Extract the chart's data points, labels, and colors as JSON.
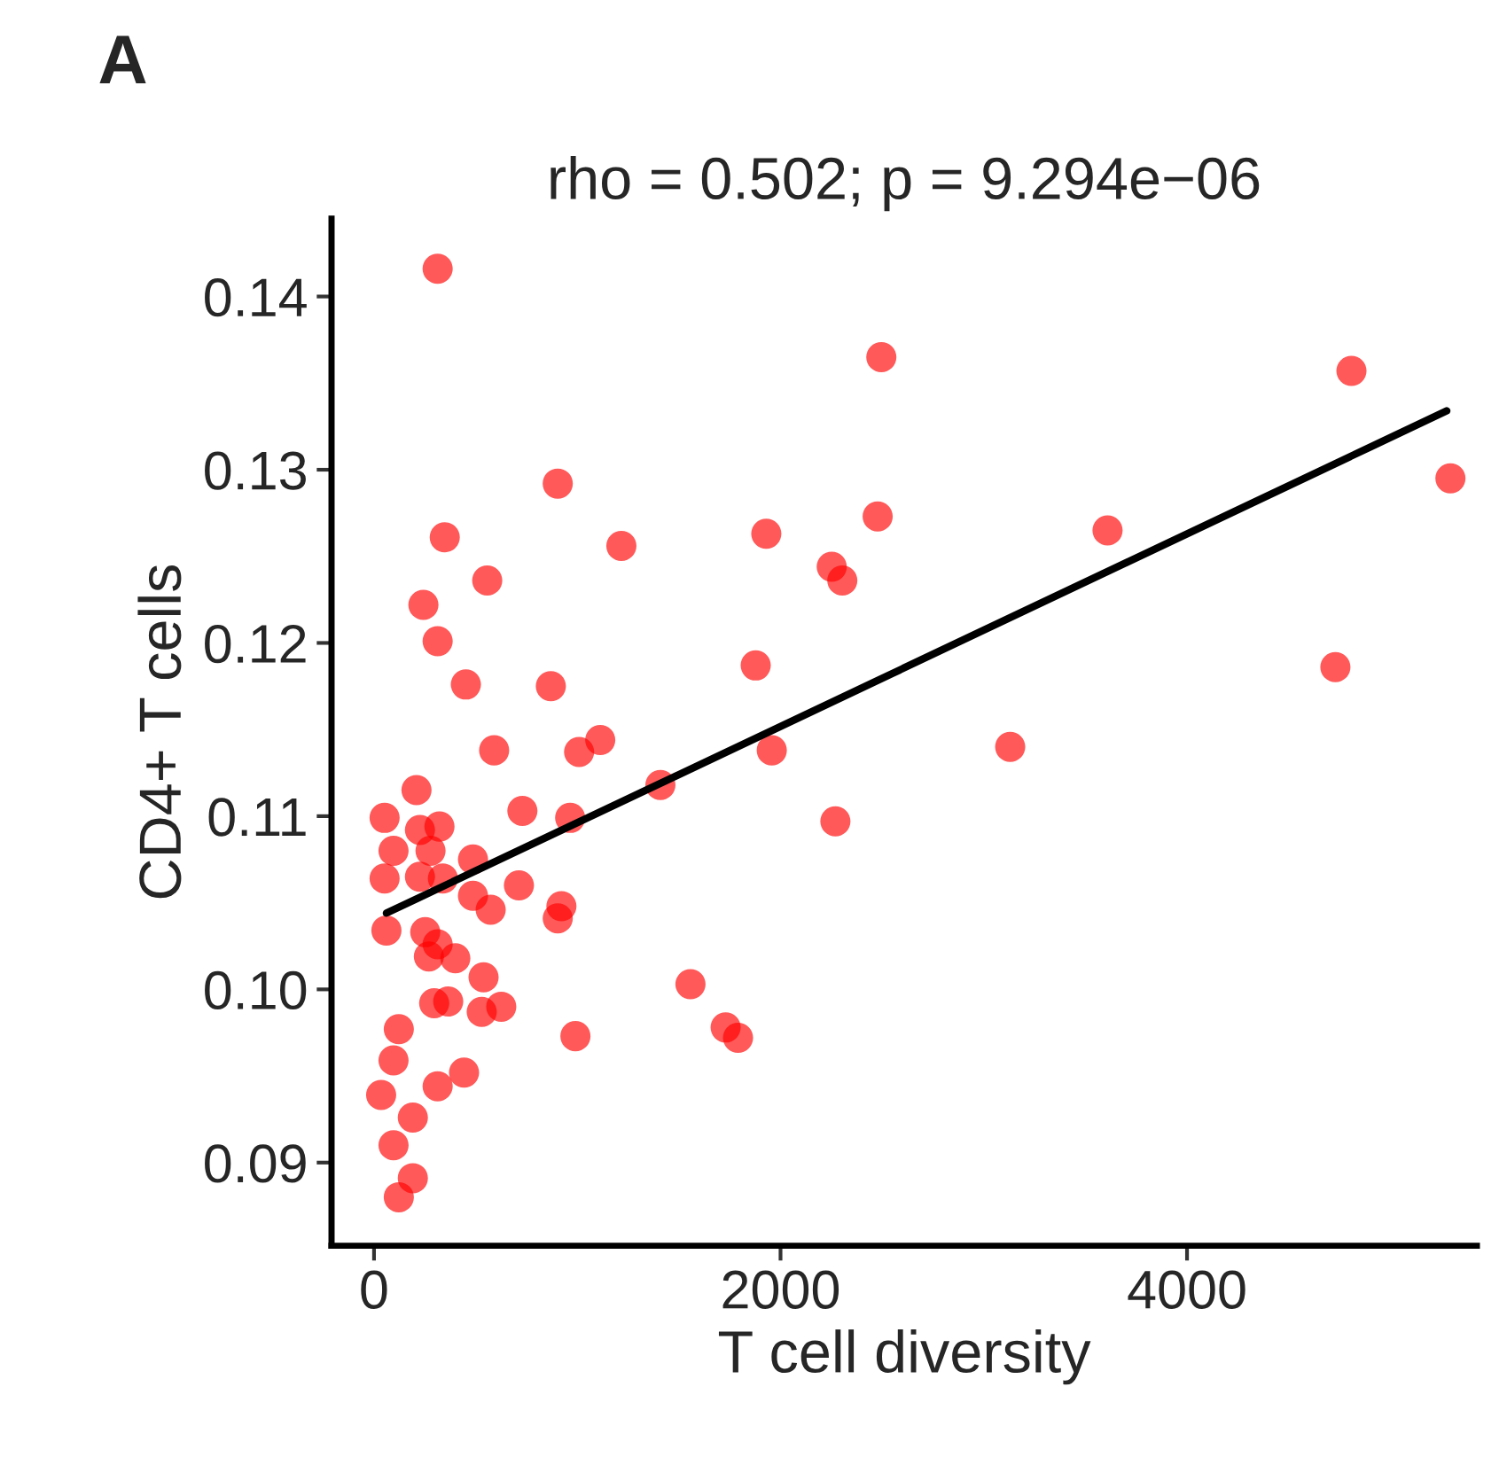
{
  "chart_data": {
    "type": "scatter",
    "title": "rho = 0.502; p = 9.294e−06",
    "xlabel": "T cell diversity",
    "ylabel": "CD4+ T cells",
    "annotations": [
      "A"
    ],
    "xlim": [
      -209,
      5426
    ],
    "ylim": [
      0.0852,
      0.1445
    ],
    "xticks": [
      0,
      2000,
      4000
    ],
    "yticks": [
      {
        "value": 0.09,
        "label": "0.09"
      },
      {
        "value": 0.1,
        "label": "0.10"
      },
      {
        "value": 0.11,
        "label": "0.11"
      },
      {
        "value": 0.12,
        "label": "0.12"
      },
      {
        "value": 0.13,
        "label": "0.13"
      },
      {
        "value": 0.14,
        "label": "0.14"
      }
    ],
    "grid": false,
    "legend": false,
    "series": [
      {
        "marker": "circle",
        "color": "#ff0000",
        "x": [
          313,
          904,
          348,
          1217,
          1930,
          557,
          243,
          313,
          452,
          870,
          1878,
          1113,
          591,
          1009,
          2496,
          4809,
          5296,
          2478,
          3609,
          2252,
          2304,
          4730,
          1957,
          3130,
          2270,
          1409,
          209,
          52,
          730,
          965,
          226,
          322,
          96,
          278,
          487,
          52,
          226,
          339,
          713,
          487,
          574,
          922,
          904,
          61,
          252,
          313,
          270,
          400,
          539,
          1557,
          296,
          365,
          530,
          626,
          1730,
          1791,
          991,
          122,
          96,
          443,
          313,
          35,
          191,
          96,
          191,
          122
        ],
        "values": [
          0.1416,
          0.1292,
          0.1261,
          0.1256,
          0.1263,
          0.1236,
          0.1222,
          0.1201,
          0.1176,
          0.1175,
          0.1187,
          0.1144,
          0.1138,
          0.1137,
          0.1365,
          0.1357,
          0.1295,
          0.1273,
          0.1265,
          0.1244,
          0.1236,
          0.1186,
          0.1138,
          0.114,
          0.1097,
          0.1118,
          0.1115,
          0.1099,
          0.1103,
          0.1099,
          0.1092,
          0.1094,
          0.108,
          0.108,
          0.1075,
          0.1064,
          0.1065,
          0.1064,
          0.106,
          0.1054,
          0.1046,
          0.1048,
          0.1041,
          0.1034,
          0.1033,
          0.1026,
          0.1019,
          0.1018,
          0.1007,
          0.1003,
          0.0992,
          0.0993,
          0.0987,
          0.099,
          0.0978,
          0.0972,
          0.0973,
          0.0977,
          0.0959,
          0.0952,
          0.0944,
          0.0939,
          0.0926,
          0.091,
          0.0891,
          0.088
        ]
      },
      {
        "type": "line",
        "color": "#000000",
        "x": [
          61,
          5278
        ],
        "values": [
          0.1044,
          0.1334
        ]
      }
    ]
  }
}
